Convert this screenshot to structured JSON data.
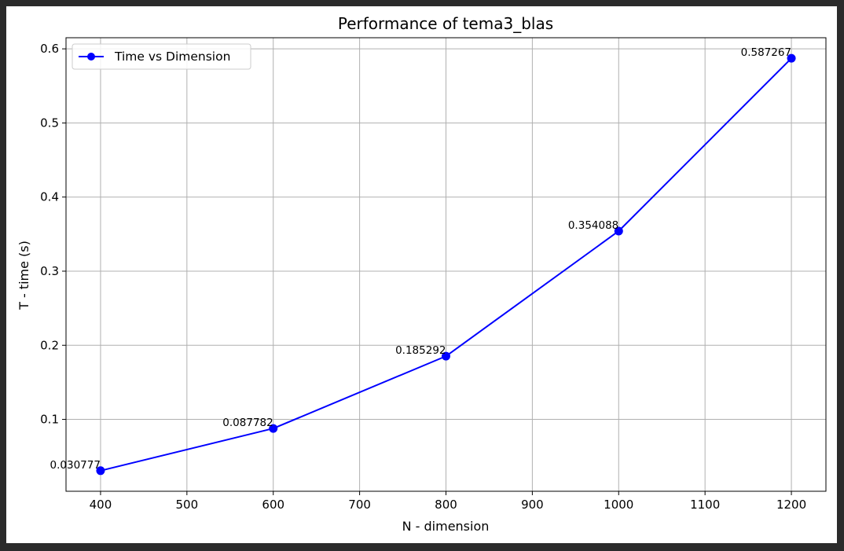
{
  "chart_data": {
    "type": "line",
    "title": "Performance of tema3_blas",
    "xlabel": "N - dimension",
    "ylabel": "T - time (s)",
    "xlim": [
      360,
      1240
    ],
    "ylim": [
      0.003,
      0.615
    ],
    "xticks": [
      400,
      500,
      600,
      700,
      800,
      900,
      1000,
      1100,
      1200
    ],
    "yticks": [
      0.1,
      0.2,
      0.3,
      0.4,
      0.5,
      0.6
    ],
    "xtick_labels": [
      "400",
      "500",
      "600",
      "700",
      "800",
      "900",
      "1000",
      "1100",
      "1200"
    ],
    "ytick_labels": [
      "0.1",
      "0.2",
      "0.3",
      "0.4",
      "0.5",
      "0.6"
    ],
    "grid": true,
    "legend_position": "upper-left",
    "series": [
      {
        "name": "Time vs Dimension",
        "color": "#0000ff",
        "marker": "circle",
        "x": [
          400,
          600,
          800,
          1000,
          1200
        ],
        "y": [
          0.030777,
          0.087782,
          0.185292,
          0.354088,
          0.587267
        ],
        "labels": [
          "0.030777",
          "0.087782",
          "0.185292",
          "0.354088",
          "0.587267"
        ]
      }
    ]
  }
}
